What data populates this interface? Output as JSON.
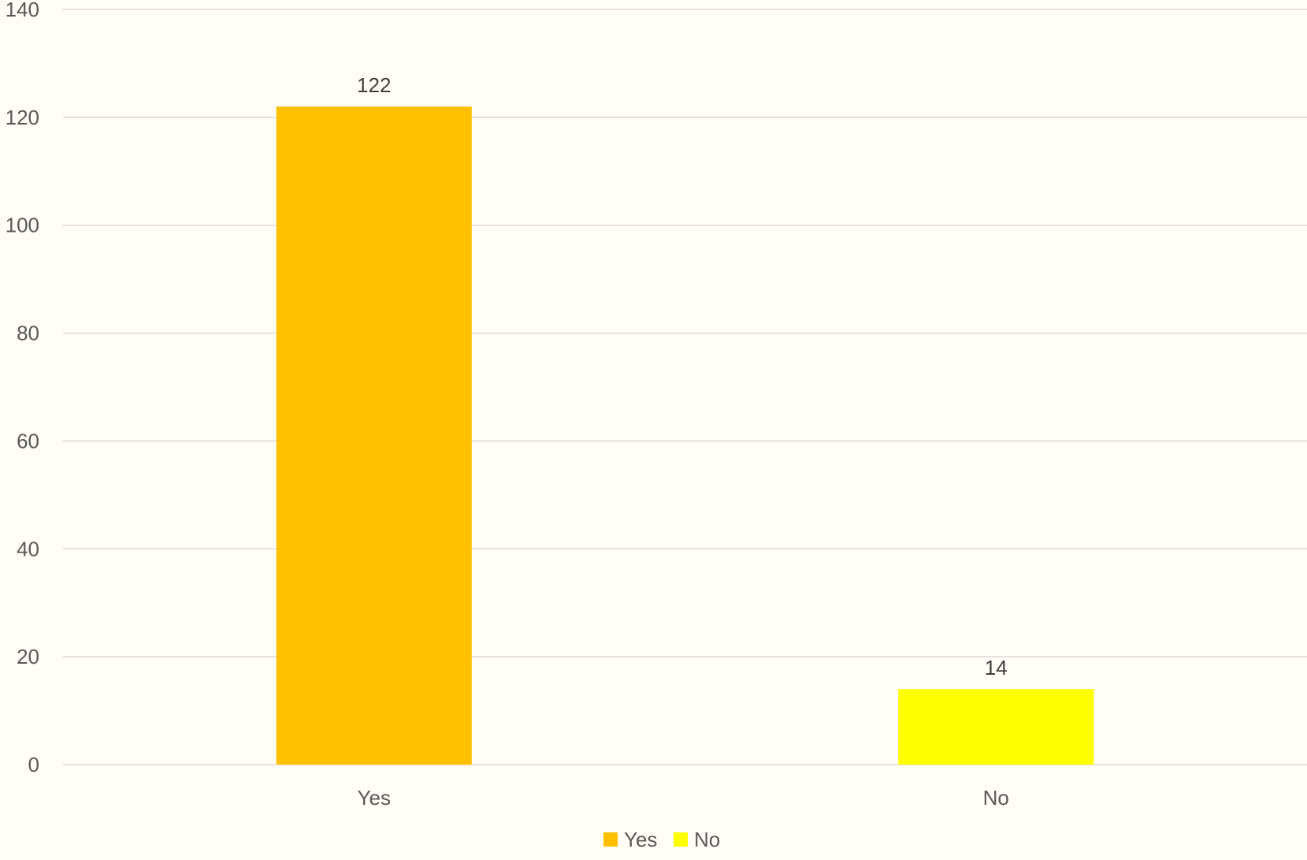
{
  "chart_data": {
    "type": "bar",
    "categories": [
      "Yes",
      "No"
    ],
    "values": [
      122,
      14
    ],
    "data_labels": [
      "122",
      "14"
    ],
    "colors": [
      "#FFC000",
      "#FFFF00"
    ],
    "title": "",
    "xlabel": "",
    "ylabel": "",
    "ylim": [
      0,
      140
    ],
    "y_ticks": [
      0,
      20,
      40,
      60,
      80,
      100,
      120,
      140
    ],
    "y_tick_labels": [
      "0",
      "20",
      "40",
      "60",
      "80",
      "100",
      "120",
      "140"
    ],
    "grid": true,
    "legend": {
      "position": "bottom",
      "entries": [
        {
          "label": "Yes",
          "color": "#FFC000"
        },
        {
          "label": "No",
          "color": "#FFFF00"
        }
      ]
    }
  }
}
